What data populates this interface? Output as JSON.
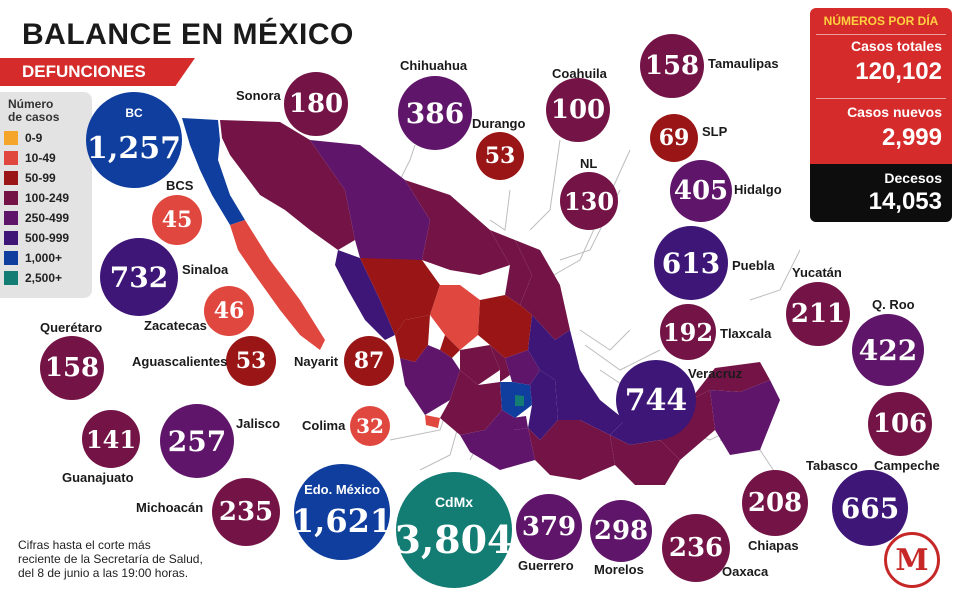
{
  "header": {
    "title_prefix": "BALANCE EN",
    "title_country": "MÉXICO",
    "subtitle": "DEFUNCIONES"
  },
  "legend": {
    "title_line1": "Número",
    "title_line2": "de casos",
    "items": [
      {
        "label": "0-9",
        "color": "#f6a52b"
      },
      {
        "label": "10-49",
        "color": "#e0473e"
      },
      {
        "label": "50-99",
        "color": "#9a1616"
      },
      {
        "label": "100-249",
        "color": "#741446"
      },
      {
        "label": "250-499",
        "color": "#5f1569"
      },
      {
        "label": "500-999",
        "color": "#3d1677"
      },
      {
        "label": "1,000+",
        "color": "#0f3e9e"
      },
      {
        "label": "2,500+",
        "color": "#137c73"
      }
    ]
  },
  "stats": {
    "heading": "NÚMEROS POR DÍA",
    "total_label": "Casos totales",
    "total_value": "120,102",
    "new_label": "Casos nuevos",
    "new_value": "2,999",
    "deaths_label": "Decesos",
    "deaths_value": "14,053"
  },
  "states": {
    "bc": {
      "name": "BC",
      "value": "1,257"
    },
    "sonora": {
      "name": "Sonora",
      "value": "180"
    },
    "chihuahua": {
      "name": "Chihuahua",
      "value": "386"
    },
    "coahuila": {
      "name": "Coahuila",
      "value": "100"
    },
    "tamaulipas": {
      "name": "Tamaulipas",
      "value": "158"
    },
    "durango": {
      "name": "Durango",
      "value": "53"
    },
    "slp": {
      "name": "SLP",
      "value": "69"
    },
    "nl": {
      "name": "NL",
      "value": "130"
    },
    "hidalgo": {
      "name": "Hidalgo",
      "value": "405"
    },
    "bcs": {
      "name": "BCS",
      "value": "45"
    },
    "sinaloa": {
      "name": "Sinaloa",
      "value": "732"
    },
    "puebla": {
      "name": "Puebla",
      "value": "613"
    },
    "yucatan": {
      "name": "Yucatán",
      "value": "211"
    },
    "qroo": {
      "name": "Q. Roo",
      "value": "422"
    },
    "zacatecas": {
      "name": "Zacatecas",
      "value": "46"
    },
    "tlaxcala": {
      "name": "Tlaxcala",
      "value": "192"
    },
    "queretaro": {
      "name": "Querétaro",
      "value": "158"
    },
    "aguascalientes": {
      "name": "Aguascalientes",
      "value": "53"
    },
    "nayarit": {
      "name": "Nayarit",
      "value": "87"
    },
    "veracruz": {
      "name": "Veracruz",
      "value": "744"
    },
    "campeche": {
      "name": "Campeche",
      "value": "106"
    },
    "guanajuato": {
      "name": "Guanajuato",
      "value": "141"
    },
    "jalisco": {
      "name": "Jalisco",
      "value": "257"
    },
    "colima": {
      "name": "Colima",
      "value": "32"
    },
    "tabasco": {
      "name": "Tabasco",
      "value": "665"
    },
    "michoacan": {
      "name": "Michoacán",
      "value": "235"
    },
    "edomex": {
      "name": "Edo. México",
      "value": "1,621"
    },
    "cdmx": {
      "name": "CdMx",
      "value": "3,804"
    },
    "guerrero": {
      "name": "Guerrero",
      "value": "379"
    },
    "morelos": {
      "name": "Morelos",
      "value": "298"
    },
    "oaxaca": {
      "name": "Oaxaca",
      "value": "236"
    },
    "chiapas": {
      "name": "Chiapas",
      "value": "208"
    }
  },
  "footnote": {
    "line1": "Cifras hasta el corte más",
    "line2": "reciente de la Secretaría de Salud,",
    "line3": "del 8 de junio a las 19:00 horas."
  },
  "logo": {
    "letter": "M"
  }
}
